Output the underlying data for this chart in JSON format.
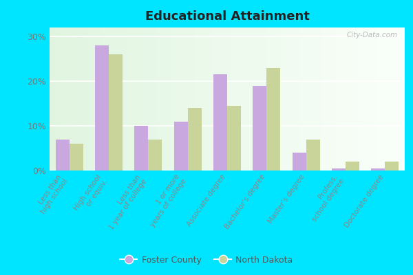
{
  "title": "Educational Attainment",
  "categories": [
    "Less than\nhigh school",
    "High school\nor equiv.",
    "Less than\n1 year of college",
    "1 or more\nyears of college",
    "Associate degree",
    "Bachelor’s degree",
    "Master’s degree",
    "Profess.\nschool degree",
    "Doctorate degree"
  ],
  "foster_county": [
    7.0,
    28.0,
    10.0,
    11.0,
    21.5,
    19.0,
    4.0,
    0.5,
    0.5
  ],
  "north_dakota": [
    6.0,
    26.0,
    7.0,
    14.0,
    14.5,
    23.0,
    7.0,
    2.0,
    2.0
  ],
  "foster_color": "#c9a8e0",
  "nd_color": "#c8d49a",
  "ylim": [
    0,
    32
  ],
  "yticks": [
    0,
    10,
    20,
    30
  ],
  "ytick_labels": [
    "0%",
    "10%",
    "20%",
    "30%"
  ],
  "watermark": "City-Data.com",
  "legend_foster": "Foster County",
  "legend_nd": "North Dakota",
  "background_outer": "#00e5ff",
  "plot_bg_top_left": "#d6efd6",
  "plot_bg_bottom_right": "#eefff0"
}
